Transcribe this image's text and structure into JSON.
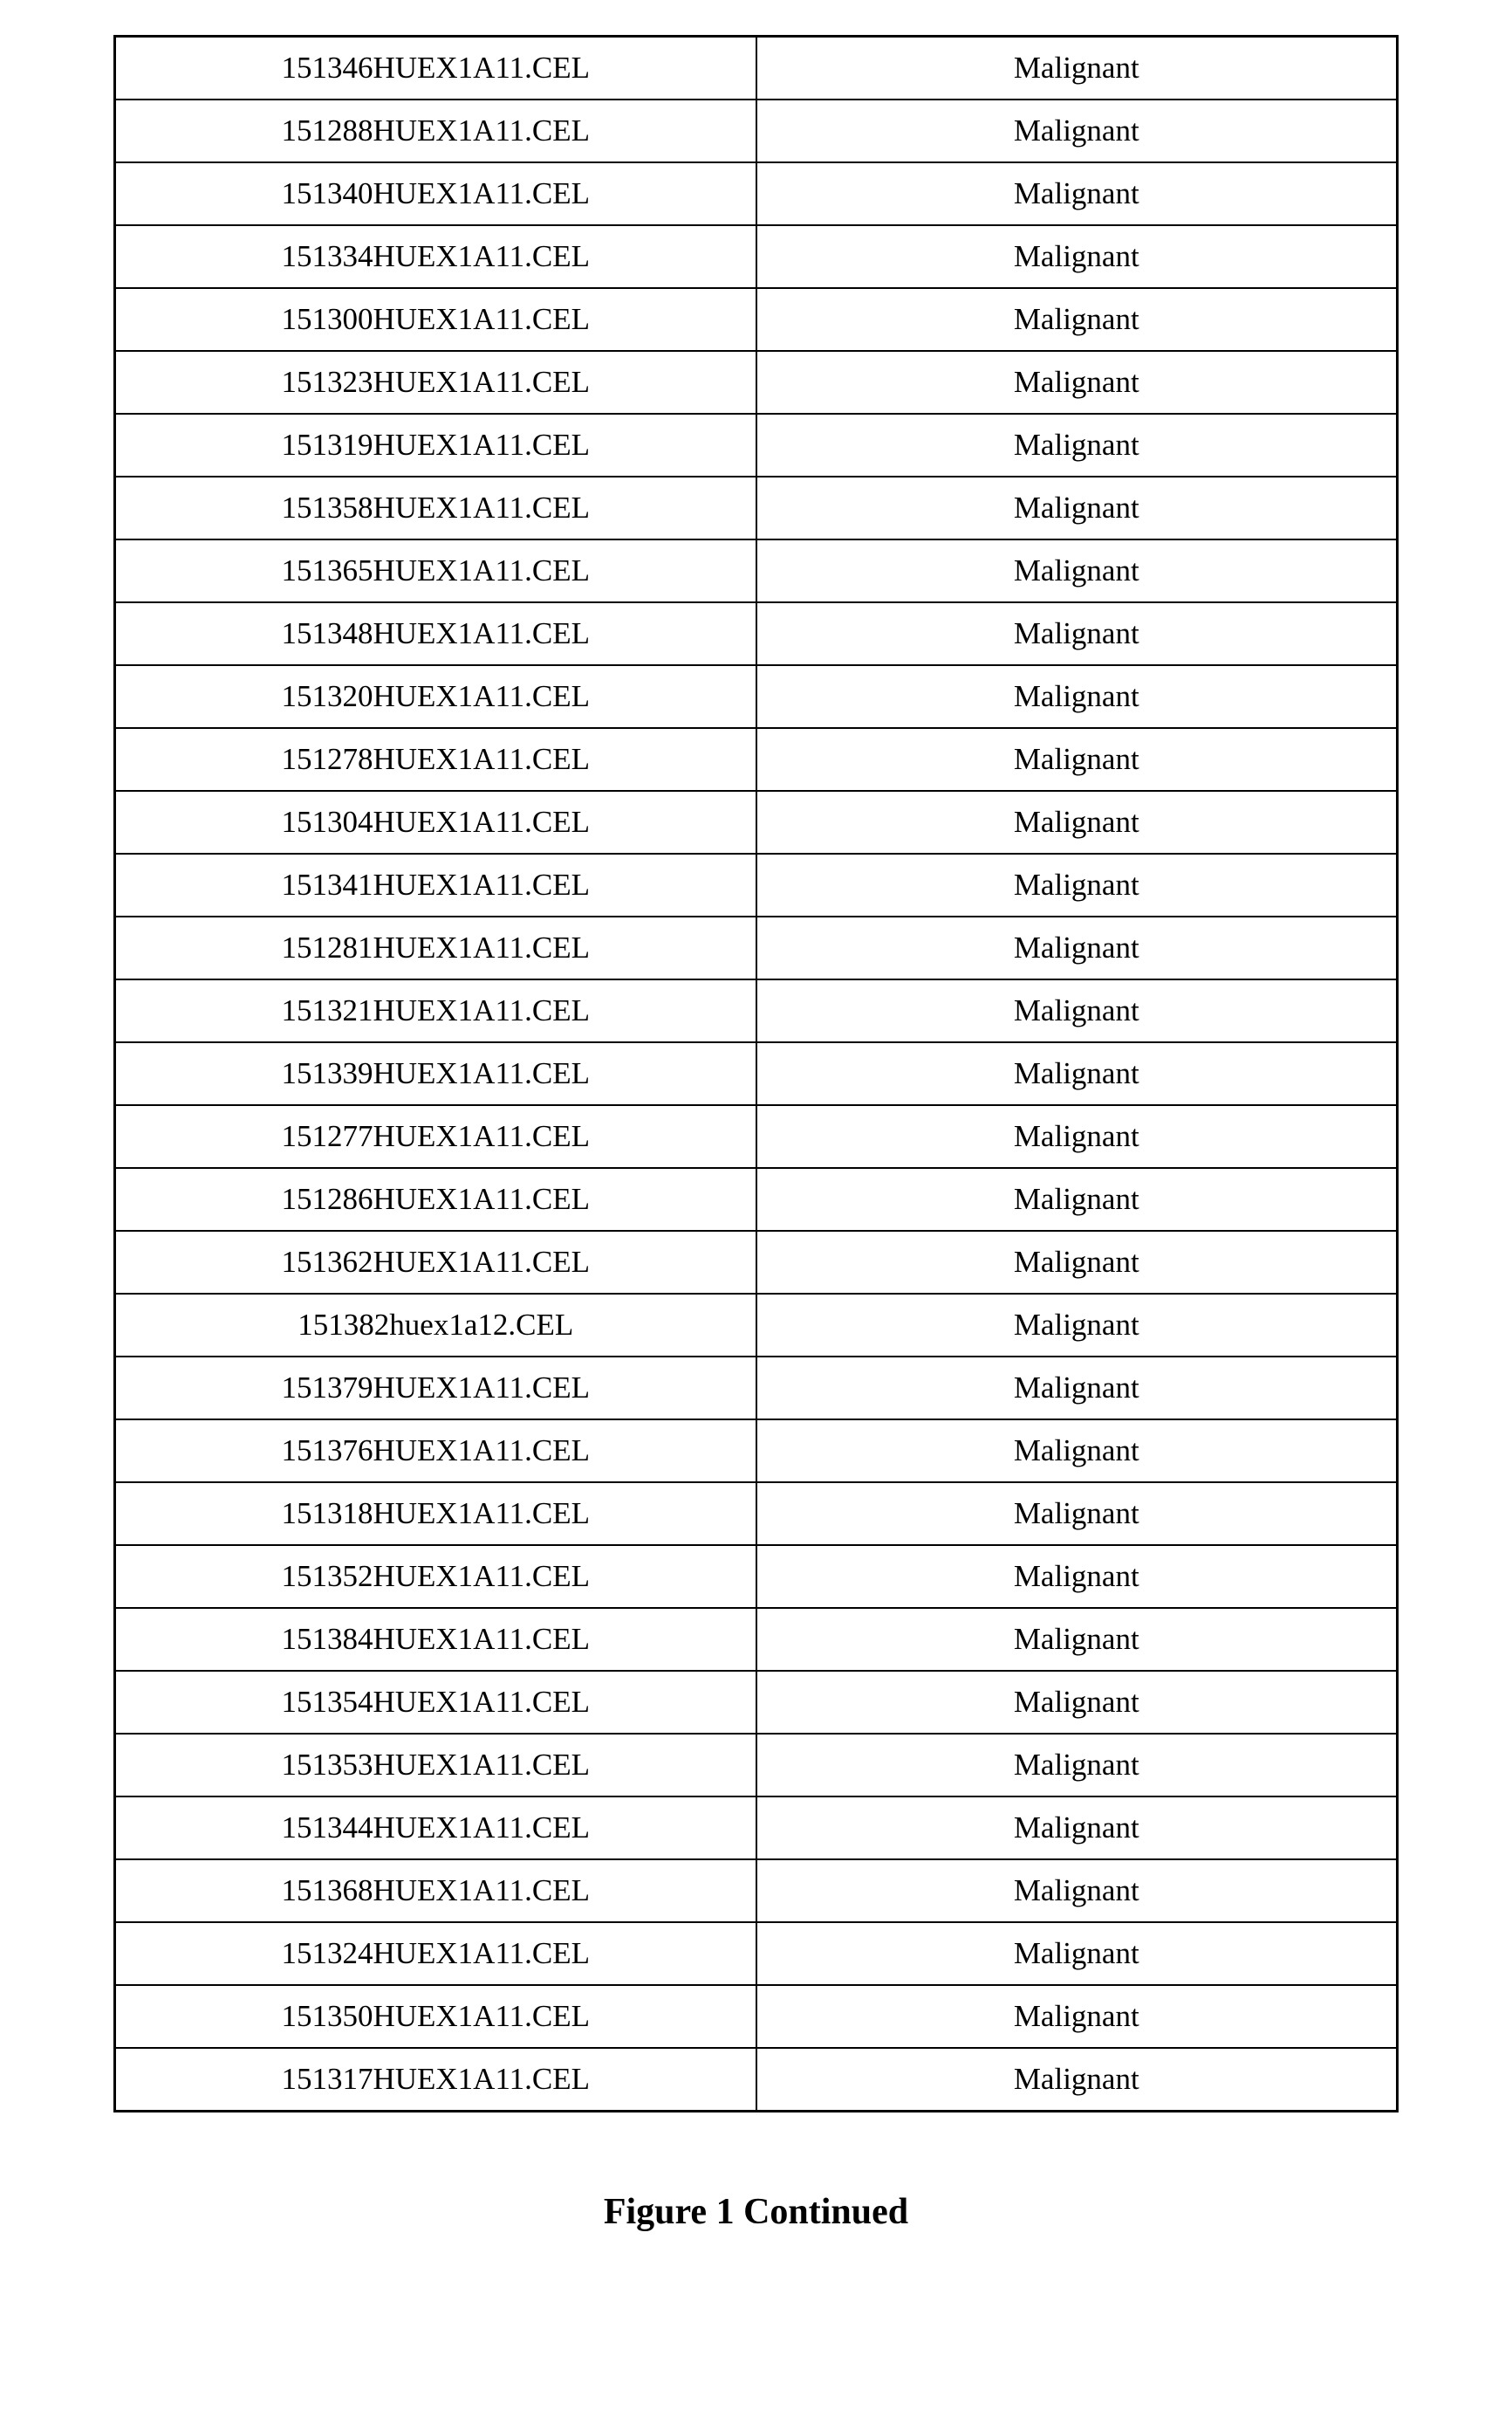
{
  "table": {
    "rows": [
      {
        "c1": "151346HUEX1A11.CEL",
        "c2": "Malignant"
      },
      {
        "c1": "151288HUEX1A11.CEL",
        "c2": "Malignant"
      },
      {
        "c1": "151340HUEX1A11.CEL",
        "c2": "Malignant"
      },
      {
        "c1": "151334HUEX1A11.CEL",
        "c2": "Malignant"
      },
      {
        "c1": "151300HUEX1A11.CEL",
        "c2": "Malignant"
      },
      {
        "c1": "151323HUEX1A11.CEL",
        "c2": "Malignant"
      },
      {
        "c1": "151319HUEX1A11.CEL",
        "c2": "Malignant"
      },
      {
        "c1": "151358HUEX1A11.CEL",
        "c2": "Malignant"
      },
      {
        "c1": "151365HUEX1A11.CEL",
        "c2": "Malignant"
      },
      {
        "c1": "151348HUEX1A11.CEL",
        "c2": "Malignant"
      },
      {
        "c1": "151320HUEX1A11.CEL",
        "c2": "Malignant"
      },
      {
        "c1": "151278HUEX1A11.CEL",
        "c2": "Malignant"
      },
      {
        "c1": "151304HUEX1A11.CEL",
        "c2": "Malignant"
      },
      {
        "c1": "151341HUEX1A11.CEL",
        "c2": "Malignant"
      },
      {
        "c1": "151281HUEX1A11.CEL",
        "c2": "Malignant"
      },
      {
        "c1": "151321HUEX1A11.CEL",
        "c2": "Malignant"
      },
      {
        "c1": "151339HUEX1A11.CEL",
        "c2": "Malignant"
      },
      {
        "c1": "151277HUEX1A11.CEL",
        "c2": "Malignant"
      },
      {
        "c1": "151286HUEX1A11.CEL",
        "c2": "Malignant"
      },
      {
        "c1": "151362HUEX1A11.CEL",
        "c2": "Malignant"
      },
      {
        "c1": "151382huex1a12.CEL",
        "c2": "Malignant"
      },
      {
        "c1": "151379HUEX1A11.CEL",
        "c2": "Malignant"
      },
      {
        "c1": "151376HUEX1A11.CEL",
        "c2": "Malignant"
      },
      {
        "c1": "151318HUEX1A11.CEL",
        "c2": "Malignant"
      },
      {
        "c1": "151352HUEX1A11.CEL",
        "c2": "Malignant"
      },
      {
        "c1": "151384HUEX1A11.CEL",
        "c2": "Malignant"
      },
      {
        "c1": "151354HUEX1A11.CEL",
        "c2": "Malignant"
      },
      {
        "c1": "151353HUEX1A11.CEL",
        "c2": "Malignant"
      },
      {
        "c1": "151344HUEX1A11.CEL",
        "c2": "Malignant"
      },
      {
        "c1": "151368HUEX1A11.CEL",
        "c2": "Malignant"
      },
      {
        "c1": "151324HUEX1A11.CEL",
        "c2": "Malignant"
      },
      {
        "c1": "151350HUEX1A11.CEL",
        "c2": "Malignant"
      },
      {
        "c1": "151317HUEX1A11.CEL",
        "c2": "Malignant"
      }
    ],
    "columns": [
      "filename",
      "classification"
    ],
    "border_color": "#000000",
    "font_size": 35,
    "background_color": "#ffffff"
  },
  "caption": "Figure 1 Continued",
  "caption_fontsize": 42,
  "caption_fontweight": "bold"
}
